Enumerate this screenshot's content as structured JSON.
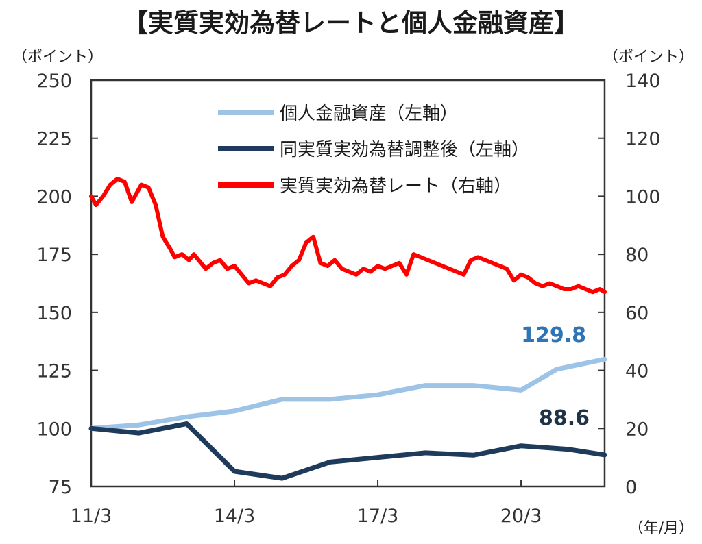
{
  "chart_data": {
    "type": "line",
    "title": "【実質実効為替レートと個人金融資産】",
    "ylabel_left": "（ポイント）",
    "ylabel_right": "（ポイント）",
    "xlabel": "（年/月）",
    "x_ticks": [
      "11/3",
      "14/3",
      "17/3",
      "20/3"
    ],
    "x_tick_values": [
      2011.25,
      2014.25,
      2017.25,
      2020.25
    ],
    "xlim": [
      2011.25,
      2022.0
    ],
    "ylim_left": [
      75,
      250
    ],
    "ylim_right": [
      0,
      140
    ],
    "y_ticks_left": [
      75,
      100,
      125,
      150,
      175,
      200,
      225,
      250
    ],
    "y_ticks_right": [
      0,
      20,
      40,
      60,
      80,
      100,
      120,
      140
    ],
    "grid": false,
    "legend_position": "top-center",
    "series": [
      {
        "name": "個人金融資産（左軸）",
        "axis": "left",
        "color": "#9dc3e6",
        "x": [
          2011.25,
          2012.25,
          2013.25,
          2014.25,
          2015.25,
          2016.25,
          2017.25,
          2018.25,
          2019.25,
          2020.25,
          2021.0,
          2022.0
        ],
        "values": [
          100,
          101.5,
          105,
          107.5,
          112.5,
          112.5,
          114.5,
          118.5,
          118.5,
          116.5,
          125.5,
          129.8
        ]
      },
      {
        "name": "同実質実効為替調整後（左軸）",
        "axis": "left",
        "color": "#1f3b5c",
        "x": [
          2011.25,
          2012.25,
          2013.25,
          2014.25,
          2015.25,
          2016.25,
          2017.25,
          2018.25,
          2019.25,
          2020.25,
          2021.25,
          2022.0
        ],
        "values": [
          100,
          98,
          102,
          81.5,
          78.5,
          85.5,
          87.5,
          89.5,
          88.5,
          92.5,
          91,
          88.6
        ]
      },
      {
        "name": "実質実効為替レート（右軸）",
        "axis": "right",
        "color": "#ff0000",
        "x": [
          2011.25,
          2011.35,
          2011.5,
          2011.65,
          2011.8,
          2011.95,
          2012.1,
          2012.2,
          2012.3,
          2012.45,
          2012.6,
          2012.75,
          2012.9,
          2013.0,
          2013.15,
          2013.3,
          2013.4,
          2013.5,
          2013.65,
          2013.8,
          2013.95,
          2014.1,
          2014.25,
          2014.4,
          2014.55,
          2014.7,
          2014.85,
          2015.0,
          2015.15,
          2015.3,
          2015.45,
          2015.6,
          2015.75,
          2015.9,
          2016.05,
          2016.2,
          2016.35,
          2016.5,
          2016.65,
          2016.8,
          2016.95,
          2017.1,
          2017.25,
          2017.4,
          2017.55,
          2017.7,
          2017.85,
          2018.0,
          2018.15,
          2018.3,
          2018.45,
          2018.6,
          2018.75,
          2018.9,
          2019.05,
          2019.2,
          2019.35,
          2019.5,
          2019.65,
          2019.8,
          2019.95,
          2020.1,
          2020.25,
          2020.4,
          2020.55,
          2020.7,
          2020.85,
          2021.0,
          2021.15,
          2021.3,
          2021.45,
          2021.6,
          2021.75,
          2021.9,
          2022.0
        ],
        "values": [
          100,
          97,
          100,
          104,
          106,
          105,
          98,
          101,
          104,
          103,
          97,
          86,
          82,
          79,
          80,
          78,
          80,
          78,
          75,
          77,
          78,
          75,
          76,
          73,
          70,
          71,
          70,
          69,
          72,
          73,
          76,
          78,
          84,
          86,
          77,
          76,
          78,
          75,
          74,
          73,
          75,
          74,
          76,
          75,
          76,
          77,
          73,
          80,
          79,
          78,
          77,
          76,
          75,
          74,
          73,
          78,
          79,
          78,
          77,
          76,
          75,
          71,
          73,
          72,
          70,
          69,
          70,
          69,
          68,
          68,
          69,
          68,
          67,
          68,
          67
        ]
      }
    ],
    "annotations": [
      {
        "text": "129.8",
        "series": 0,
        "color": "#2e75b6"
      },
      {
        "text": "88.6",
        "series": 1,
        "color": "#1f3347"
      }
    ]
  }
}
